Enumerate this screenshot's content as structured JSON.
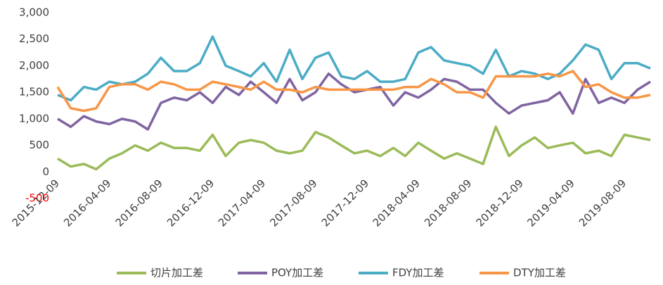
{
  "chart_data": {
    "type": "line",
    "x": [
      "2015-12-09",
      "2016-01-09",
      "2016-02-09",
      "2016-03-09",
      "2016-04-09",
      "2016-05-09",
      "2016-06-09",
      "2016-07-09",
      "2016-08-09",
      "2016-09-09",
      "2016-10-09",
      "2016-11-09",
      "2016-12-09",
      "2017-01-09",
      "2017-02-09",
      "2017-03-09",
      "2017-04-09",
      "2017-05-09",
      "2017-06-09",
      "2017-07-09",
      "2017-08-09",
      "2017-09-09",
      "2017-10-09",
      "2017-11-09",
      "2017-12-09",
      "2018-01-09",
      "2018-02-09",
      "2018-03-09",
      "2018-04-09",
      "2018-05-09",
      "2018-06-09",
      "2018-07-09",
      "2018-08-09",
      "2018-09-09",
      "2018-10-09",
      "2018-11-09",
      "2018-12-09",
      "2019-01-09",
      "2019-02-09",
      "2019-03-09",
      "2019-04-09",
      "2019-05-09",
      "2019-06-09",
      "2019-07-09",
      "2019-08-09",
      "2019-09-09",
      "2019-10-09"
    ],
    "series": [
      {
        "name": "切片加工差",
        "color": "#9bbb59",
        "values": [
          250,
          100,
          150,
          50,
          250,
          350,
          500,
          400,
          550,
          450,
          450,
          400,
          700,
          300,
          550,
          600,
          550,
          400,
          350,
          400,
          750,
          650,
          500,
          350,
          400,
          300,
          450,
          300,
          550,
          400,
          250,
          350,
          250,
          150,
          850,
          300,
          500,
          650,
          450,
          500,
          550,
          350,
          400,
          300,
          700,
          650,
          600
        ]
      },
      {
        "name": "POY加工差",
        "color": "#8064a2",
        "values": [
          1000,
          850,
          1050,
          950,
          900,
          1000,
          950,
          800,
          1300,
          1400,
          1350,
          1500,
          1300,
          1600,
          1450,
          1700,
          1500,
          1300,
          1750,
          1350,
          1500,
          1850,
          1650,
          1500,
          1550,
          1600,
          1250,
          1500,
          1400,
          1550,
          1750,
          1700,
          1550,
          1550,
          1300,
          1100,
          1250,
          1300,
          1350,
          1500,
          1100,
          1750,
          1300,
          1400,
          1300,
          1550,
          1700
        ]
      },
      {
        "name": "FDY加工差",
        "color": "#4bacc6",
        "values": [
          1450,
          1350,
          1600,
          1550,
          1700,
          1650,
          1700,
          1850,
          2150,
          1900,
          1900,
          2050,
          2550,
          2000,
          1900,
          1800,
          2050,
          1700,
          2300,
          1750,
          2150,
          2250,
          1800,
          1750,
          1900,
          1700,
          1700,
          1750,
          2250,
          2350,
          2100,
          2050,
          2000,
          1850,
          2300,
          1800,
          1900,
          1850,
          1750,
          1850,
          2100,
          2400,
          2300,
          1750,
          2050,
          2050,
          1950
        ]
      },
      {
        "name": "DTY加工差",
        "color": "#f79646",
        "values": [
          1600,
          1200,
          1150,
          1200,
          1600,
          1650,
          1650,
          1550,
          1700,
          1650,
          1550,
          1550,
          1700,
          1650,
          1600,
          1550,
          1700,
          1550,
          1550,
          1500,
          1600,
          1550,
          1550,
          1550,
          1550,
          1550,
          1550,
          1600,
          1600,
          1750,
          1650,
          1500,
          1500,
          1400,
          1800,
          1800,
          1800,
          1800,
          1850,
          1800,
          1900,
          1600,
          1650,
          1500,
          1400,
          1400,
          1450
        ]
      }
    ],
    "xlim": [
      "2015-12-09",
      "2019-10-29"
    ],
    "xticks": [
      "2015-12-09",
      "2016-04-09",
      "2016-08-09",
      "2016-12-09",
      "2017-04-09",
      "2017-08-09",
      "2017-12-09",
      "2018-04-09",
      "2018-08-09",
      "2018-12-09",
      "2019-04-09",
      "2019-08-09"
    ],
    "ylim": [
      -500,
      3000
    ],
    "yticks": [
      -500,
      0,
      500,
      {
        "value": 1000,
        "label": "1,000"
      },
      {
        "value": 1500,
        "label": "1,500"
      },
      {
        "value": 2000,
        "label": "2,000"
      },
      {
        "value": 2500,
        "label": "2,500"
      },
      {
        "value": 3000,
        "label": "3,000"
      }
    ],
    "negative_tick_color": "#ff0000",
    "grid": false,
    "legend": "bottom"
  }
}
